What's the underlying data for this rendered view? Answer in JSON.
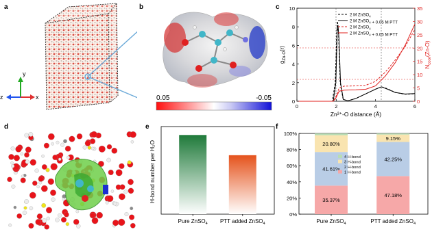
{
  "panels": {
    "a": "a",
    "b": "b",
    "c": "c",
    "d": "d",
    "e": "e",
    "f": "f"
  },
  "panel_a": {
    "axis_y": "y",
    "axis_z": "z",
    "axis_x": "x"
  },
  "panel_b": {
    "scale_min": "0.05",
    "scale_max": "-0.05"
  },
  "colors": {
    "red": "#e0201e",
    "black": "#000000",
    "green_bar": "#1f7a3a",
    "orange_bar": "#e5531c",
    "stack_1": "#f6a8a8",
    "stack_2": "#b9cde6",
    "stack_3": "#f9e4b0",
    "stack_4": "#b8ddb4"
  },
  "chart_data": [
    {
      "id": "c",
      "type": "line",
      "xlabel": "Zn²⁺-O distance (Å)",
      "ylabel_left": "g(r)",
      "ylabel_right": "N(r)",
      "xlim": [
        0,
        6
      ],
      "ylim_left": [
        0,
        10
      ],
      "ylim_right": [
        0,
        35
      ],
      "x_ticks": [
        "0",
        "2",
        "4",
        "6"
      ],
      "y_ticks_left": [
        "0",
        "2",
        "4",
        "6",
        "8",
        "10"
      ],
      "y_ticks_right": [
        "0",
        "5",
        "10",
        "15",
        "20",
        "25",
        "30",
        "35"
      ],
      "legend": [
        "2 M ZnSO₄",
        "2 M ZnSO₄ + 0.05 M PTT",
        "2 M ZnSO₄",
        "2 M ZnSO₄ + 0.05 M PTT"
      ],
      "series": [
        {
          "name": "2 M ZnSO₄",
          "axis": "left",
          "style": "dashed",
          "color": "#000000",
          "points": [
            [
              0,
              0
            ],
            [
              1.8,
              0
            ],
            [
              1.95,
              2
            ],
            [
              2.03,
              7.5
            ],
            [
              2.07,
              8.6
            ],
            [
              2.12,
              7
            ],
            [
              2.2,
              2
            ],
            [
              2.35,
              0.2
            ],
            [
              2.6,
              0.05
            ],
            [
              3.0,
              0.3
            ],
            [
              3.6,
              0.9
            ],
            [
              4.0,
              1.3
            ],
            [
              4.3,
              1.55
            ],
            [
              4.6,
              1.35
            ],
            [
              5.0,
              0.95
            ],
            [
              5.5,
              0.75
            ],
            [
              6,
              0.8
            ]
          ]
        },
        {
          "name": "2 M ZnSO₄ + 0.05 M PTT",
          "axis": "left",
          "style": "solid",
          "color": "#000000",
          "points": [
            [
              0,
              0
            ],
            [
              1.85,
              0
            ],
            [
              1.98,
              2
            ],
            [
              2.05,
              7.6
            ],
            [
              2.09,
              8.2
            ],
            [
              2.14,
              6.8
            ],
            [
              2.22,
              2
            ],
            [
              2.36,
              0.2
            ],
            [
              2.6,
              0.05
            ],
            [
              3.0,
              0.3
            ],
            [
              3.6,
              0.9
            ],
            [
              4.0,
              1.3
            ],
            [
              4.3,
              1.55
            ],
            [
              4.6,
              1.3
            ],
            [
              5.0,
              0.95
            ],
            [
              5.5,
              0.78
            ],
            [
              6,
              0.82
            ]
          ]
        },
        {
          "name": "2 M ZnSO₄",
          "axis": "right",
          "style": "dashed",
          "color": "#e0201e",
          "points": [
            [
              0,
              0
            ],
            [
              1.85,
              0
            ],
            [
              2.0,
              2
            ],
            [
              2.15,
              5
            ],
            [
              2.4,
              5.7
            ],
            [
              3.0,
              5.8
            ],
            [
              3.5,
              6.0
            ],
            [
              4.0,
              7.5
            ],
            [
              4.5,
              11
            ],
            [
              5.0,
              15.5
            ],
            [
              5.5,
              20.5
            ],
            [
              6,
              27
            ]
          ]
        },
        {
          "name": "2 M ZnSO₄ + 0.05 M PTT",
          "axis": "right",
          "style": "solid",
          "color": "#e0201e",
          "points": [
            [
              0,
              0
            ],
            [
              1.85,
              0
            ],
            [
              2.0,
              1.5
            ],
            [
              2.15,
              3.8
            ],
            [
              2.4,
              4.2
            ],
            [
              3.0,
              4.3
            ],
            [
              3.5,
              4.5
            ],
            [
              4.0,
              5.8
            ],
            [
              4.5,
              9.5
            ],
            [
              5.0,
              14.5
            ],
            [
              5.5,
              21
            ],
            [
              6,
              29
            ]
          ]
        }
      ]
    },
    {
      "id": "e",
      "type": "bar",
      "ylabel": "H-bond number per H₂O",
      "categories": [
        "Pure ZnSO₄",
        "PTT added ZnSO₄"
      ],
      "values": [
        2.35,
        1.75
      ],
      "ylim": [
        0,
        2.6
      ]
    },
    {
      "id": "f",
      "type": "bar",
      "stacked": true,
      "categories": [
        "Pure ZnSO₄",
        "PTT added ZnSO₄"
      ],
      "y_ticks": [
        "0%",
        "20%",
        "40%",
        "60%",
        "80%",
        "100%"
      ],
      "legend": [
        "4 H-bond",
        "3 H-bond",
        "2 H-bond",
        "1 H-bond"
      ],
      "series": [
        {
          "name": "1 H-bond",
          "values": [
            35.37,
            47.18
          ],
          "labels": [
            "35.37%",
            "47.18%"
          ]
        },
        {
          "name": "2 H-bond",
          "values": [
            41.61,
            42.25
          ],
          "labels": [
            "41.61%",
            "42.25%"
          ]
        },
        {
          "name": "3 H-bond",
          "values": [
            20.8,
            9.15
          ],
          "labels": [
            "20.80%",
            "9.15%"
          ]
        },
        {
          "name": "4 H-bond",
          "values": [
            2.22,
            1.42
          ],
          "labels": [
            "",
            ""
          ]
        }
      ]
    }
  ]
}
